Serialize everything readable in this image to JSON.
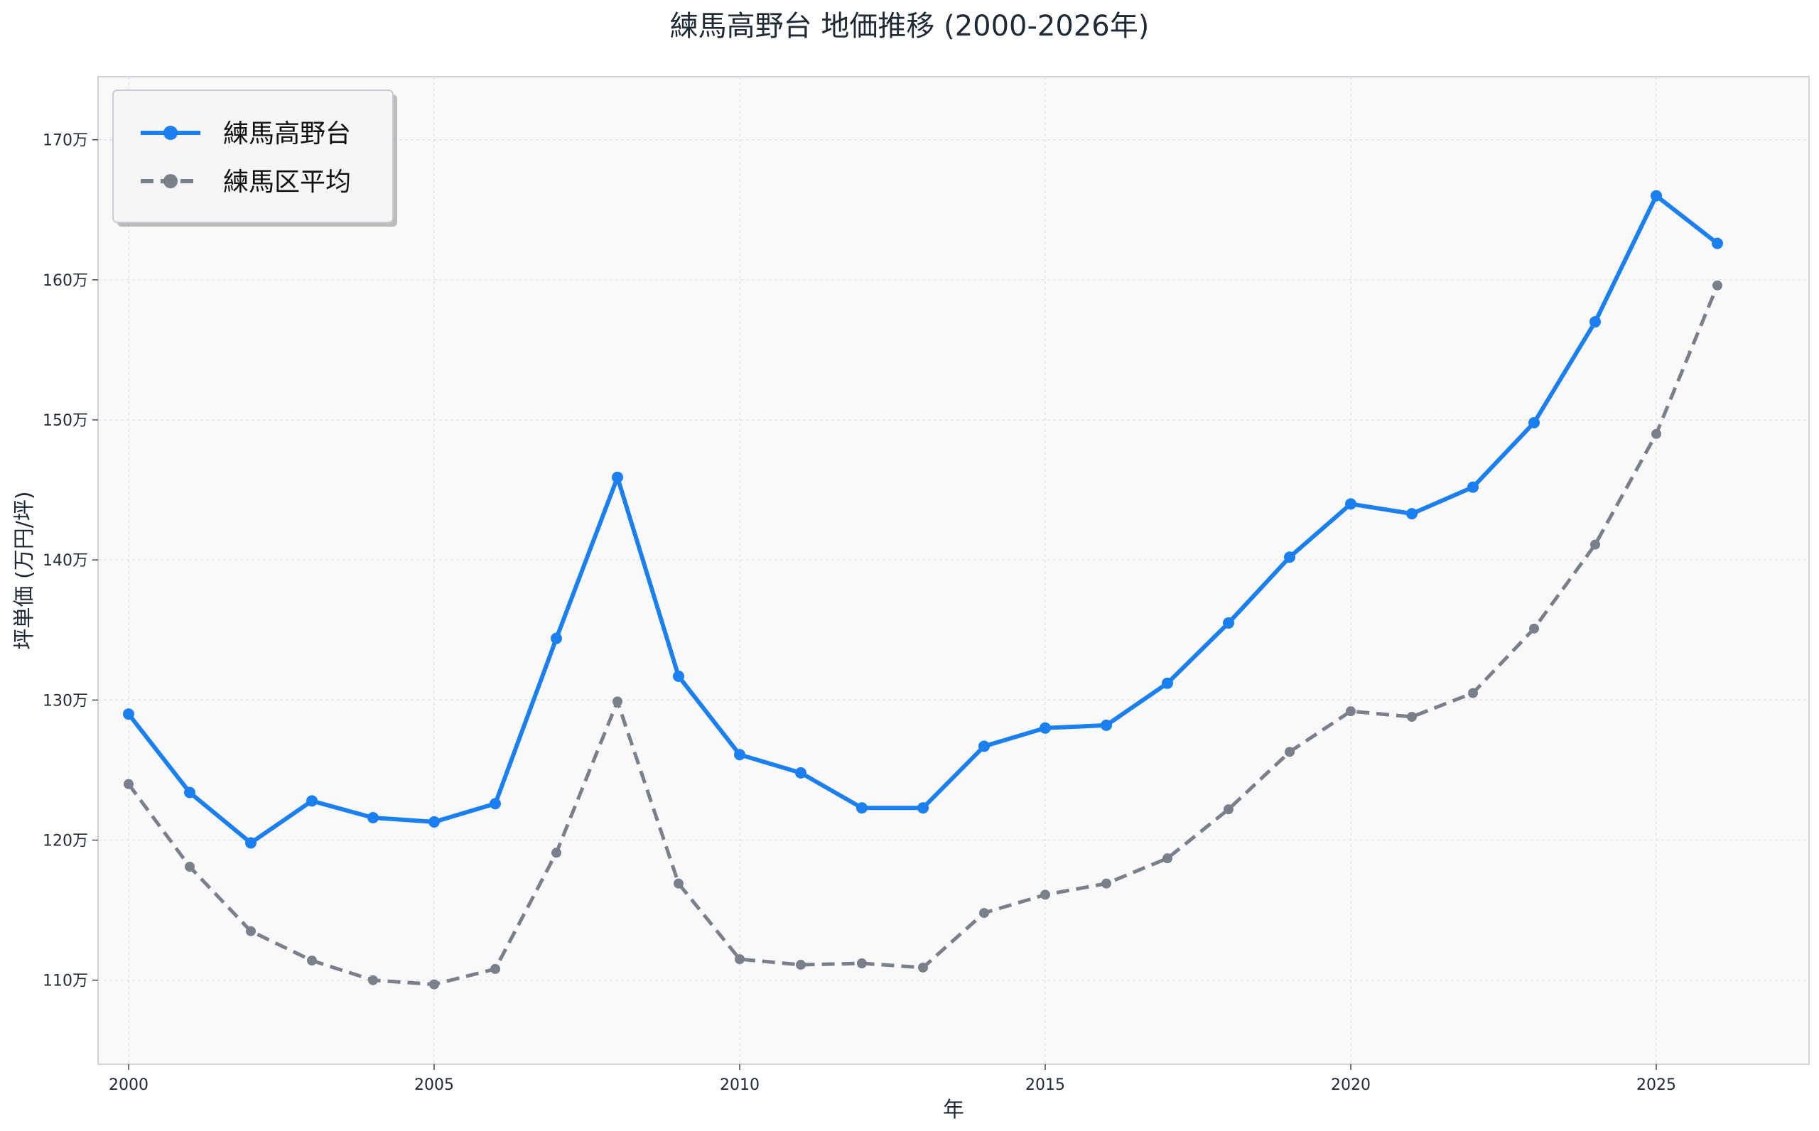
{
  "chart_data": {
    "type": "line",
    "title": "練馬高野台 地価推移 (2000-2026年)",
    "xlabel": "年",
    "ylabel": "坪単価 (万円/坪)",
    "xlim": [
      1999.5,
      2027.5
    ],
    "ylim": [
      104,
      174.5
    ],
    "x_ticks": [
      2000,
      2005,
      2010,
      2015,
      2020,
      2025
    ],
    "x_tick_labels": [
      "2000",
      "2005",
      "2010",
      "2015",
      "2020",
      "2025"
    ],
    "y_ticks": [
      110,
      120,
      130,
      140,
      150,
      160,
      170
    ],
    "y_tick_labels": [
      "110万",
      "120万",
      "130万",
      "140万",
      "150万",
      "160万",
      "170万"
    ],
    "grid": true,
    "legend_position": "top-left",
    "x": [
      2000,
      2001,
      2002,
      2003,
      2004,
      2005,
      2006,
      2007,
      2008,
      2009,
      2010,
      2011,
      2012,
      2013,
      2014,
      2015,
      2016,
      2017,
      2018,
      2019,
      2020,
      2021,
      2022,
      2023,
      2024,
      2025,
      2026
    ],
    "series": [
      {
        "name": "練馬高野台",
        "color": "#1a7ff0",
        "style": "solid",
        "values": [
          129.0,
          123.4,
          119.8,
          122.8,
          121.6,
          121.3,
          122.6,
          134.4,
          145.9,
          131.7,
          126.1,
          124.8,
          122.3,
          122.3,
          126.7,
          128.0,
          128.2,
          131.2,
          135.5,
          140.2,
          144.0,
          143.3,
          145.2,
          149.8,
          157.0,
          166.0,
          162.6
        ]
      },
      {
        "name": "練馬区平均",
        "color": "#7a7f8c",
        "style": "dashed",
        "values": [
          124.0,
          118.1,
          113.5,
          111.4,
          110.0,
          109.7,
          110.8,
          119.1,
          129.9,
          116.9,
          111.5,
          111.1,
          111.2,
          110.9,
          114.8,
          116.1,
          116.9,
          118.7,
          122.2,
          126.3,
          129.2,
          128.8,
          130.5,
          135.1,
          141.1,
          149.0,
          159.6
        ]
      }
    ]
  }
}
